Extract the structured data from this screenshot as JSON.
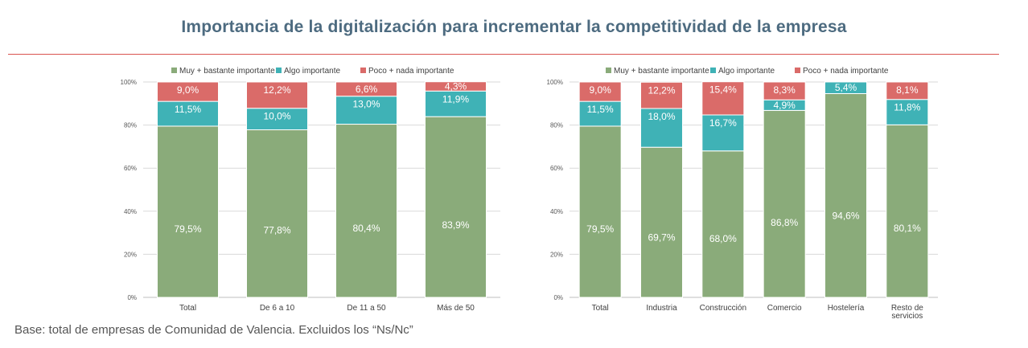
{
  "title": "Importancia de la digitalización para incrementar la competitividad de la empresa",
  "footnote": "Base: total de empresas de Comunidad de Valencia. Excluidos los “Ns/Nc”",
  "colors": {
    "muy": "#8aab7a",
    "algo": "#3fb2b6",
    "poco": "#da6b69",
    "title": "#4d6b80",
    "rule": "#d9534f"
  },
  "chart_data": [
    {
      "type": "bar",
      "stacked": true,
      "categories": [
        "Total",
        "De 6 a 10",
        "De 11 a 50",
        "Más de 50"
      ],
      "series": [
        {
          "name": "Muy + bastante importante",
          "values": [
            79.5,
            77.8,
            80.4,
            83.9
          ],
          "labels": [
            "79,5%",
            "77,8%",
            "80,4%",
            "83,9%"
          ]
        },
        {
          "name": "Algo importante",
          "values": [
            11.5,
            10.0,
            13.0,
            11.9
          ],
          "labels": [
            "11,5%",
            "10,0%",
            "13,0%",
            "11,9%"
          ]
        },
        {
          "name": "Poco + nada importante",
          "values": [
            9.0,
            12.2,
            6.6,
            4.3
          ],
          "labels": [
            "9,0%",
            "12,2%",
            "6,6%",
            "4,3%"
          ]
        }
      ],
      "yticks": [
        "0%",
        "20%",
        "40%",
        "60%",
        "80%",
        "100%"
      ],
      "ylim": [
        0,
        100
      ],
      "legend": "top"
    },
    {
      "type": "bar",
      "stacked": true,
      "categories": [
        "Total",
        "Industria",
        "Construcción",
        "Comercio",
        "Hostelería",
        "Resto de servicios"
      ],
      "category_lines": [
        [
          "Total"
        ],
        [
          "Industria"
        ],
        [
          "Construcción"
        ],
        [
          "Comercio"
        ],
        [
          "Hostelería"
        ],
        [
          "Resto de",
          "servicios"
        ]
      ],
      "series": [
        {
          "name": "Muy + bastante importante",
          "values": [
            79.5,
            69.7,
            68.0,
            86.8,
            94.6,
            80.1
          ],
          "labels": [
            "79,5%",
            "69,7%",
            "68,0%",
            "86,8%",
            "94,6%",
            "80,1%"
          ]
        },
        {
          "name": "Algo importante",
          "values": [
            11.5,
            18.0,
            16.7,
            4.9,
            5.4,
            11.8
          ],
          "labels": [
            "11,5%",
            "18,0%",
            "16,7%",
            "4,9%",
            "5,4%",
            "11,8%"
          ]
        },
        {
          "name": "Poco + nada importante",
          "values": [
            9.0,
            12.2,
            15.4,
            8.3,
            0,
            8.1
          ],
          "labels": [
            "9,0%",
            "12,2%",
            "15,4%",
            "8,3%",
            "",
            "8,1%"
          ]
        }
      ],
      "yticks": [
        "0%",
        "20%",
        "40%",
        "60%",
        "80%",
        "100%"
      ],
      "ylim": [
        0,
        100
      ],
      "legend": "top"
    }
  ]
}
